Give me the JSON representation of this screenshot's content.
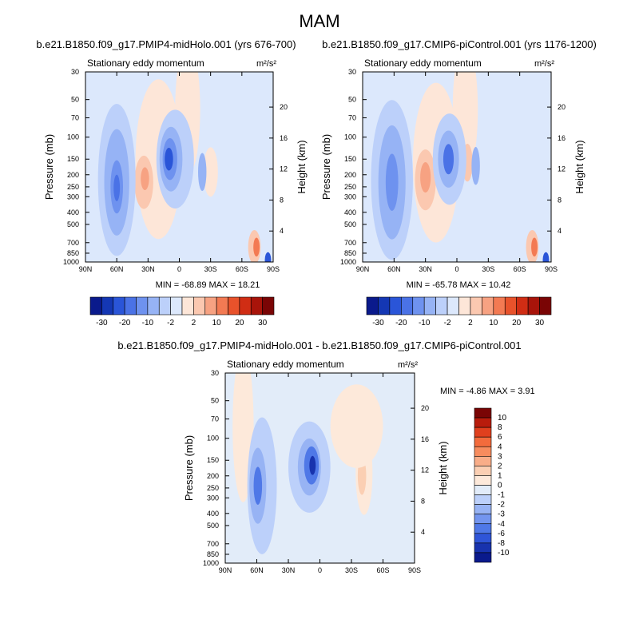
{
  "chart_data": {
    "type": "heatmap",
    "title": "MAM",
    "panels": [
      {
        "case": "b.e21.B1850.f09_g17.PMIP4-midHolo.001 (yrs 676-700)",
        "left_string": "Stationary eddy momentum",
        "units": "m²/s²",
        "min_max": "MIN = -68.89  MAX =  18.21",
        "ylabel": "Pressure (mb)",
        "ylabel_right": "Height (km)",
        "colorbar_labels": [
          "-30",
          "-20",
          "-10",
          "-2",
          "2",
          "10",
          "20",
          "30"
        ]
      },
      {
        "case": "b.e21.B1850.f09_g17.CMIP6-piControl.001 (yrs 1176-1200)",
        "left_string": "Stationary eddy momentum",
        "units": "m²/s²",
        "min_max": "MIN = -65.78  MAX =  10.42",
        "ylabel": "Pressure (mb)",
        "ylabel_right": "Height (km)",
        "colorbar_labels": [
          "-30",
          "-20",
          "-10",
          "-2",
          "2",
          "10",
          "20",
          "30"
        ]
      },
      {
        "case": "b.e21.B1850.f09_g17.PMIP4-midHolo.001 - b.e21.B1850.f09_g17.CMIP6-piControl.001",
        "left_string": "Stationary eddy momentum",
        "units": "m²/s²",
        "min_max": "MIN =  -4.86  MAX =   3.91",
        "ylabel": "Pressure (mb)",
        "ylabel_right": "Height (km)",
        "colorbar_labels": [
          "10",
          "8",
          "6",
          "4",
          "3",
          "2",
          "1",
          "0",
          "-1",
          "-2",
          "-3",
          "-4",
          "-6",
          "-8",
          "-10"
        ]
      }
    ],
    "x_ticks": [
      "90N",
      "60N",
      "30N",
      "0",
      "30S",
      "60S",
      "90S"
    ],
    "y_ticks": [
      30,
      50,
      70,
      100,
      150,
      200,
      250,
      300,
      400,
      500,
      700,
      850,
      1000
    ],
    "height_ticks": [
      4,
      8,
      12,
      16,
      20
    ],
    "ylim": [
      1000,
      30
    ],
    "colors": {
      "abs_levels": [
        "#0a1a8c",
        "#1437b4",
        "#2a55d8",
        "#4a72e6",
        "#6e92ef",
        "#96b3f5",
        "#bcd0fa",
        "#dce8fc",
        "#fde6d8",
        "#fbc8b0",
        "#f7a282",
        "#f37a53",
        "#e8522b",
        "#d02d14",
        "#a8140a",
        "#7a0505"
      ],
      "diff_levels": [
        "#7a0505",
        "#b81c0c",
        "#e0401e",
        "#f36b3c",
        "#f78c5e",
        "#f9ad88",
        "#fbcfb3",
        "#fde9da",
        "#e2ecf9",
        "#bcd0fa",
        "#97b3f4",
        "#7395ef",
        "#4f78e7",
        "#2f55d8",
        "#1833ae",
        "#0a1a8c"
      ]
    }
  }
}
